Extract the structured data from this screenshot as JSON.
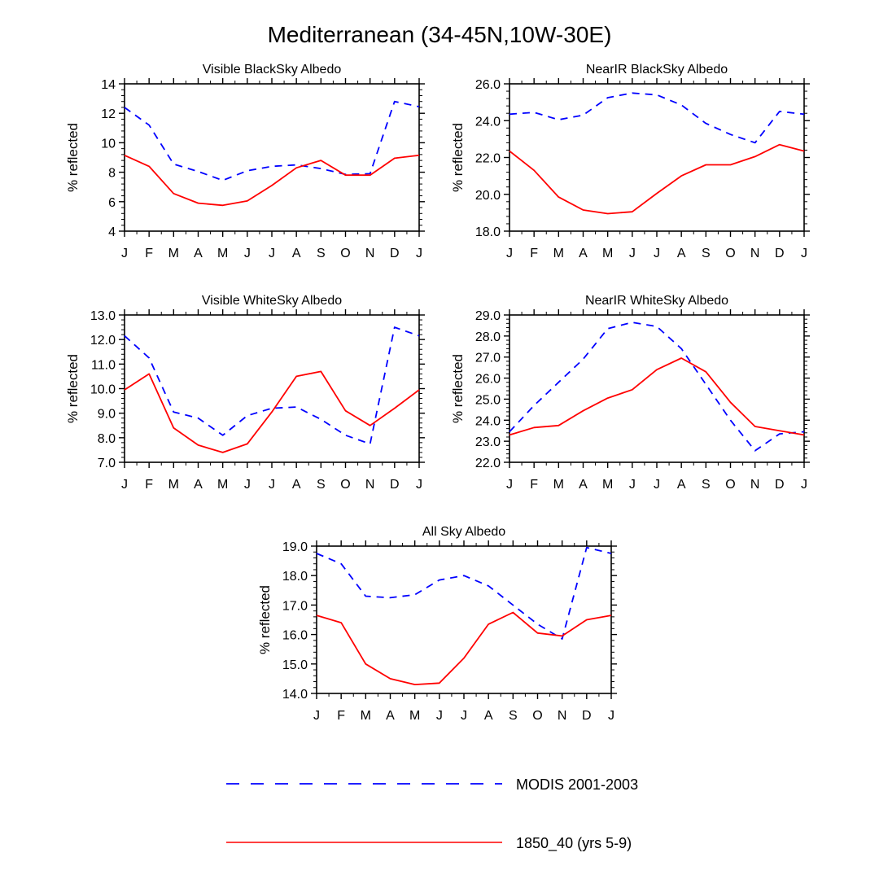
{
  "figure": {
    "title": "Mediterranean (34-45N,10W-30E)"
  },
  "legend": {
    "position": "bottom-center",
    "entries": [
      {
        "label": "MODIS 2001-2003",
        "color": "#0000ff",
        "dash": "dashed"
      },
      {
        "label": "1850_40 (yrs 5-9)",
        "color": "#ff0000",
        "dash": "solid"
      }
    ]
  },
  "chart_data": [
    {
      "type": "line",
      "title": "Visible BlackSky Albedo",
      "xlabel": "",
      "ylabel": "% reflected",
      "categories": [
        "J",
        "F",
        "M",
        "A",
        "M",
        "J",
        "J",
        "A",
        "S",
        "O",
        "N",
        "D",
        "J"
      ],
      "ylim": [
        4,
        14
      ],
      "yticks": [
        4,
        6,
        8,
        10,
        12,
        14
      ],
      "ytick_labels": [
        "4",
        "6",
        "8",
        "10",
        "12",
        "14"
      ],
      "series": [
        {
          "name": "MODIS 2001-2003",
          "values": [
            12.4,
            11.2,
            8.55,
            8.05,
            7.45,
            8.1,
            8.4,
            8.5,
            8.25,
            7.85,
            7.9,
            12.8,
            12.45
          ]
        },
        {
          "name": "1850_40 (yrs 5-9)",
          "values": [
            9.15,
            8.4,
            6.55,
            5.9,
            5.75,
            6.05,
            7.1,
            8.3,
            8.8,
            7.8,
            7.8,
            8.95,
            9.15
          ]
        }
      ]
    },
    {
      "type": "line",
      "title": "NearIR BlackSky Albedo",
      "xlabel": "",
      "ylabel": "% reflected",
      "categories": [
        "J",
        "F",
        "M",
        "A",
        "M",
        "J",
        "J",
        "A",
        "S",
        "O",
        "N",
        "D",
        "J"
      ],
      "ylim": [
        18,
        26
      ],
      "yticks": [
        18,
        20,
        22,
        24,
        26
      ],
      "ytick_labels": [
        "18.0",
        "20.0",
        "22.0",
        "24.0",
        "26.0"
      ],
      "series": [
        {
          "name": "MODIS 2001-2003",
          "values": [
            24.35,
            24.45,
            24.05,
            24.3,
            25.25,
            25.5,
            25.4,
            24.85,
            23.85,
            23.25,
            22.8,
            24.5,
            24.35
          ]
        },
        {
          "name": "1850_40 (yrs 5-9)",
          "values": [
            22.35,
            21.3,
            19.85,
            19.15,
            18.95,
            19.05,
            20.05,
            21.0,
            21.6,
            21.6,
            22.05,
            22.7,
            22.35
          ]
        }
      ]
    },
    {
      "type": "line",
      "title": "Visible WhiteSky Albedo",
      "xlabel": "",
      "ylabel": "% reflected",
      "categories": [
        "J",
        "F",
        "M",
        "A",
        "M",
        "J",
        "J",
        "A",
        "S",
        "O",
        "N",
        "D",
        "J"
      ],
      "ylim": [
        7,
        13
      ],
      "yticks": [
        7,
        8,
        9,
        10,
        11,
        12,
        13
      ],
      "ytick_labels": [
        "7.0",
        "8.0",
        "9.0",
        "10.0",
        "11.0",
        "12.0",
        "13.0"
      ],
      "series": [
        {
          "name": "MODIS 2001-2003",
          "values": [
            12.15,
            11.25,
            9.05,
            8.8,
            8.1,
            8.9,
            9.2,
            9.25,
            8.75,
            8.1,
            7.75,
            12.5,
            12.15
          ]
        },
        {
          "name": "1850_40 (yrs 5-9)",
          "values": [
            9.95,
            10.6,
            8.4,
            7.7,
            7.4,
            7.75,
            9.05,
            10.5,
            10.7,
            9.1,
            8.5,
            9.2,
            9.95
          ]
        }
      ]
    },
    {
      "type": "line",
      "title": "NearIR WhiteSky Albedo",
      "xlabel": "",
      "ylabel": "% reflected",
      "categories": [
        "J",
        "F",
        "M",
        "A",
        "M",
        "J",
        "J",
        "A",
        "S",
        "O",
        "N",
        "D",
        "J"
      ],
      "ylim": [
        22,
        29
      ],
      "yticks": [
        22,
        23,
        24,
        25,
        26,
        27,
        28,
        29
      ],
      "ytick_labels": [
        "22.0",
        "23.0",
        "24.0",
        "25.0",
        "26.0",
        "27.0",
        "28.0",
        "29.0"
      ],
      "series": [
        {
          "name": "MODIS 2001-2003",
          "values": [
            23.45,
            24.7,
            25.8,
            26.9,
            28.35,
            28.65,
            28.45,
            27.4,
            25.7,
            24.0,
            22.55,
            23.35,
            23.45
          ]
        },
        {
          "name": "1850_40 (yrs 5-9)",
          "values": [
            23.3,
            23.65,
            23.75,
            24.45,
            25.05,
            25.45,
            26.4,
            26.95,
            26.3,
            24.85,
            23.7,
            23.5,
            23.3
          ]
        }
      ]
    },
    {
      "type": "line",
      "title": "All Sky Albedo",
      "xlabel": "",
      "ylabel": "% reflected",
      "categories": [
        "J",
        "F",
        "M",
        "A",
        "M",
        "J",
        "J",
        "A",
        "S",
        "O",
        "N",
        "D",
        "J"
      ],
      "ylim": [
        14,
        19
      ],
      "yticks": [
        14,
        15,
        16,
        17,
        18,
        19
      ],
      "ytick_labels": [
        "14.0",
        "15.0",
        "16.0",
        "17.0",
        "18.0",
        "19.0"
      ],
      "series": [
        {
          "name": "MODIS 2001-2003",
          "values": [
            18.75,
            18.4,
            17.3,
            17.25,
            17.35,
            17.85,
            18.0,
            17.65,
            17.0,
            16.35,
            15.85,
            18.95,
            18.75
          ]
        },
        {
          "name": "1850_40 (yrs 5-9)",
          "values": [
            16.65,
            16.4,
            15.0,
            14.5,
            14.3,
            14.35,
            15.2,
            16.35,
            16.75,
            16.05,
            15.95,
            16.5,
            16.65
          ]
        }
      ]
    }
  ]
}
